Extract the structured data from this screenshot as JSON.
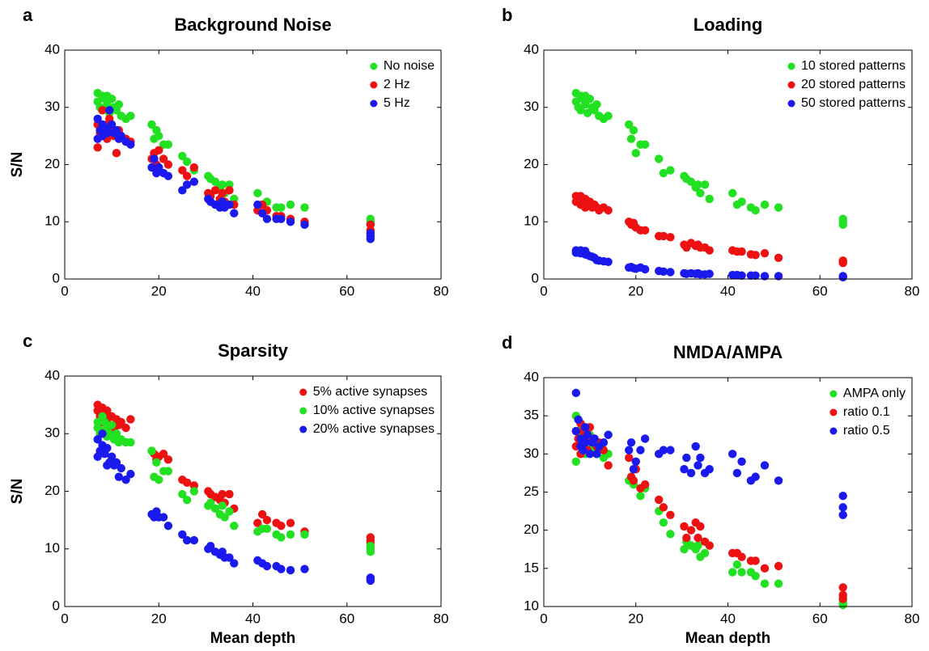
{
  "chart_data": [
    {
      "type": "scatter",
      "panel": "a",
      "title": "Background Noise",
      "ylabel": "S/N",
      "x": [
        7,
        7,
        7.5,
        8,
        8,
        8.5,
        9,
        9,
        9.5,
        10,
        10.5,
        11,
        11.5,
        12,
        13,
        14,
        18.5,
        19,
        19.5,
        20,
        21,
        22,
        25,
        26,
        27.5,
        30.5,
        31,
        32,
        33,
        33.5,
        34,
        35,
        36,
        41,
        42,
        43,
        45,
        46,
        48,
        51,
        65,
        65,
        65
      ],
      "series": [
        {
          "name": "No noise",
          "color": "#22e022",
          "values": [
            32.5,
            31,
            30,
            32,
            29.5,
            31.5,
            30.5,
            32,
            29,
            31.5,
            30,
            29.5,
            30.5,
            28.5,
            28,
            28.5,
            27,
            24.5,
            26,
            25,
            23.5,
            23.5,
            21.5,
            20.5,
            19,
            18,
            17.5,
            17,
            16,
            16.5,
            15,
            16.5,
            14,
            15,
            13,
            13.5,
            12.5,
            12.5,
            13,
            12.5,
            10.5,
            10,
            9.5
          ]
        },
        {
          "name": "2 Hz",
          "color": "#ee1111",
          "values": [
            23,
            27,
            25.5,
            29.5,
            26,
            25,
            27,
            24.5,
            28,
            26,
            25,
            22,
            26,
            25,
            24.5,
            24,
            21,
            22,
            20,
            22.5,
            21,
            20,
            19,
            18,
            19.5,
            15,
            14.5,
            15.5,
            14,
            15,
            13.5,
            15.5,
            13,
            12,
            13,
            12,
            11,
            11,
            10.5,
            10,
            9.5,
            8.5,
            8
          ]
        },
        {
          "name": "5 Hz",
          "color": "#1a1aee",
          "values": [
            24.5,
            28,
            26,
            27,
            25,
            26.5,
            26,
            25.5,
            29.5,
            27,
            25.5,
            26,
            24.5,
            25,
            24,
            23.5,
            19.5,
            21,
            18.5,
            19.5,
            18.5,
            18,
            15.5,
            16.5,
            17,
            14,
            13.5,
            13,
            12.5,
            13.5,
            12.5,
            13,
            11.5,
            13,
            11.5,
            10.5,
            10.5,
            10.5,
            10,
            9.5,
            8,
            7.5,
            7
          ]
        }
      ],
      "xlim": [
        0,
        80
      ],
      "ylim": [
        0,
        40
      ],
      "xticks": [
        0,
        20,
        40,
        60,
        80
      ],
      "yticks": [
        0,
        10,
        20,
        30,
        40
      ],
      "legend": "upper right"
    },
    {
      "type": "scatter",
      "panel": "b",
      "title": "Loading",
      "x": [
        7,
        7,
        7.5,
        8,
        8,
        8.5,
        9,
        9,
        9.5,
        10,
        10.5,
        11,
        11.5,
        12,
        13,
        14,
        18.5,
        19,
        19.5,
        20,
        21,
        22,
        25,
        26,
        27.5,
        30.5,
        31,
        32,
        33,
        33.5,
        34,
        35,
        36,
        41,
        42,
        43,
        45,
        46,
        48,
        51,
        65,
        65,
        65
      ],
      "series": [
        {
          "name": "10 stored patterns",
          "color": "#22e022",
          "values": [
            32.5,
            31,
            30,
            32,
            29.5,
            31.5,
            30.5,
            32,
            29,
            31.5,
            30,
            29.5,
            30.5,
            28.5,
            28,
            28.5,
            27,
            24.5,
            26,
            22,
            23.5,
            23.5,
            21,
            18.5,
            19,
            18,
            17.5,
            17,
            16,
            16.5,
            15,
            16.5,
            14,
            15,
            13,
            13.5,
            12.5,
            12,
            13,
            12.5,
            10.5,
            10,
            9.5
          ]
        },
        {
          "name": "20 stored patterns",
          "color": "#ee1111",
          "values": [
            14.5,
            13.5,
            14,
            13,
            14.5,
            13.5,
            12.5,
            14,
            13,
            13.5,
            12.5,
            13,
            12.5,
            12,
            12.5,
            12,
            10,
            9.5,
            9.8,
            9,
            8.5,
            8.5,
            7.5,
            7.5,
            7.3,
            6,
            5.5,
            6.3,
            5.8,
            6,
            5.5,
            5.5,
            5,
            5,
            4.8,
            4.8,
            4.3,
            4.2,
            4.5,
            3.7,
            3.2,
            2.8,
            3
          ]
        },
        {
          "name": "50 stored patterns",
          "color": "#1a1aee",
          "values": [
            5,
            4.6,
            4.8,
            5,
            4.5,
            4.7,
            4.3,
            4.9,
            4.2,
            4,
            3.9,
            3.7,
            3.3,
            3.2,
            3.1,
            3,
            2,
            2.1,
            1.9,
            1.8,
            2,
            1.7,
            1.4,
            1.3,
            1.2,
            1,
            0.9,
            1,
            0.9,
            1,
            0.8,
            0.8,
            0.9,
            0.7,
            0.7,
            0.6,
            0.6,
            0.6,
            0.5,
            0.5,
            0.5,
            0.3,
            0.4
          ]
        }
      ],
      "xlim": [
        0,
        80
      ],
      "ylim": [
        0,
        40
      ],
      "xticks": [
        0,
        20,
        40,
        60,
        80
      ],
      "yticks": [
        0,
        10,
        20,
        30,
        40
      ],
      "legend": "upper right"
    },
    {
      "type": "scatter",
      "panel": "c",
      "title": "Sparsity",
      "xlabel": "Mean depth",
      "ylabel": "S/N",
      "x": [
        7,
        7,
        7.5,
        8,
        8,
        8.5,
        9,
        9,
        9.5,
        10,
        10.5,
        11,
        11.5,
        12,
        13,
        14,
        18.5,
        19,
        19.5,
        20,
        21,
        22,
        25,
        26,
        27.5,
        30.5,
        31,
        32,
        33,
        33.5,
        34,
        35,
        36,
        41,
        42,
        43,
        45,
        46,
        48,
        51,
        65,
        65,
        65
      ],
      "series": [
        {
          "name": "5% active synapses",
          "color": "#ee1111",
          "values": [
            35,
            34,
            33,
            34.5,
            32,
            33.5,
            34,
            32.5,
            31.5,
            33,
            31,
            32.5,
            31.5,
            32,
            31,
            32.5,
            27,
            26.5,
            25.5,
            26,
            26.5,
            25.5,
            22,
            21.5,
            21,
            20,
            19.5,
            19,
            18.5,
            19.5,
            18,
            19.5,
            17,
            14.5,
            16,
            15,
            14.5,
            14,
            14.5,
            13,
            12,
            11.5,
            11
          ]
        },
        {
          "name": "10% active synapses",
          "color": "#22e022",
          "values": [
            32,
            31,
            30,
            33,
            30.5,
            32,
            31,
            29.5,
            30,
            31.5,
            29,
            30,
            28.5,
            29,
            28.5,
            28.5,
            27,
            22.5,
            25,
            22,
            23.5,
            23.5,
            19.5,
            18.5,
            20,
            17.5,
            18,
            17,
            16,
            17.5,
            15.5,
            16.5,
            14,
            13,
            13.5,
            13.5,
            12.5,
            12,
            12.5,
            12.5,
            10,
            9.5,
            10.5
          ]
        },
        {
          "name": "20% active synapses",
          "color": "#1a1aee",
          "values": [
            26,
            29,
            27,
            28,
            30,
            26.5,
            24.5,
            27.5,
            25,
            26,
            24.5,
            25,
            22.5,
            24,
            22,
            23,
            16,
            15.5,
            16.5,
            15.5,
            15.5,
            14,
            12.5,
            11.5,
            11.5,
            10,
            10.5,
            9.5,
            9,
            9.5,
            8.5,
            8.5,
            7.5,
            8,
            7.5,
            7,
            7,
            6.5,
            6.3,
            6.5,
            5,
            4.5,
            4.8
          ]
        }
      ],
      "xlim": [
        0,
        80
      ],
      "ylim": [
        0,
        40
      ],
      "xticks": [
        0,
        20,
        40,
        60,
        80
      ],
      "yticks": [
        0,
        10,
        20,
        30,
        40
      ],
      "legend": "upper right"
    },
    {
      "type": "scatter",
      "panel": "d",
      "title": "NMDA/AMPA",
      "xlabel": "Mean depth",
      "x": [
        7,
        7,
        7.5,
        8,
        8,
        8.5,
        9,
        9,
        9.5,
        10,
        10.5,
        11,
        11.5,
        12,
        13,
        14,
        18.5,
        19,
        19.5,
        20,
        21,
        22,
        25,
        26,
        27.5,
        30.5,
        31,
        32,
        33,
        33.5,
        34,
        35,
        36,
        41,
        42,
        43,
        45,
        46,
        48,
        51,
        65,
        65,
        65
      ],
      "series": [
        {
          "name": "AMPA only",
          "color": "#22e022",
          "values": [
            35,
            29,
            33,
            31.5,
            34,
            32.5,
            30,
            33,
            31,
            32.5,
            30.5,
            31.5,
            30,
            31,
            29.5,
            30,
            26.5,
            27,
            26,
            28,
            24.5,
            25.5,
            22.5,
            21,
            19.5,
            17.5,
            18.5,
            18,
            17.5,
            18,
            16.5,
            17,
            18,
            14.5,
            15.5,
            14.5,
            14.5,
            14,
            13,
            13,
            11,
            10.5,
            10.2
          ]
        },
        {
          "name": "ratio 0.1",
          "color": "#ee1111",
          "values": [
            33,
            31,
            32,
            34,
            30,
            33,
            31.5,
            32,
            30.5,
            33.5,
            32,
            32,
            31,
            31.5,
            30.5,
            28.5,
            29.5,
            27,
            26.5,
            28,
            25.5,
            26,
            24,
            23,
            22,
            20.5,
            19,
            20,
            21,
            19,
            20.5,
            18.5,
            18,
            17,
            17,
            16.5,
            16,
            16,
            15,
            15.3,
            12.5,
            11.5,
            11
          ]
        },
        {
          "name": "ratio 0.5",
          "color": "#1a1aee",
          "values": [
            38,
            33,
            34.5,
            31,
            32,
            30.5,
            33.5,
            31.5,
            32.5,
            30,
            31.5,
            32,
            30,
            31,
            31.5,
            32.5,
            30.5,
            31.5,
            28,
            29,
            30.5,
            32,
            30,
            30.5,
            30.5,
            28,
            29.5,
            27.5,
            31,
            28.5,
            29.5,
            27.5,
            28,
            30,
            27.5,
            29,
            26.5,
            27,
            28.5,
            26.5,
            24.5,
            23,
            22
          ]
        }
      ],
      "xlim": [
        0,
        80
      ],
      "ylim": [
        10,
        40
      ],
      "xticks": [
        0,
        20,
        40,
        60,
        80
      ],
      "yticks": [
        10,
        15,
        20,
        25,
        30,
        35,
        40
      ],
      "legend": "upper right"
    }
  ]
}
